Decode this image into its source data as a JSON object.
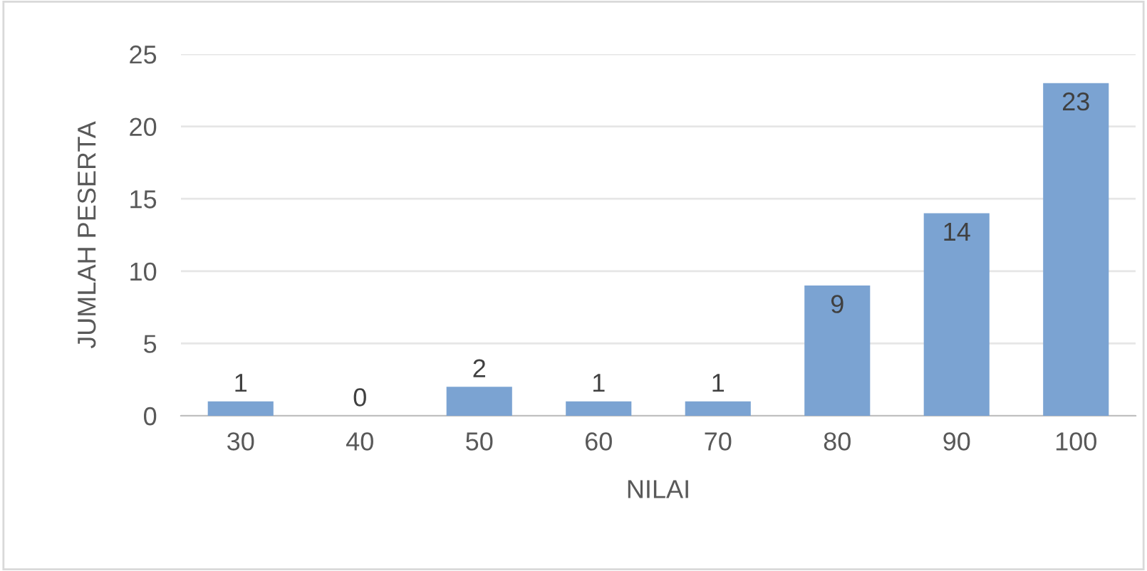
{
  "chart_data": {
    "type": "bar",
    "xlabel": "NILAI",
    "ylabel": "JUMLAH PESERTA",
    "categories": [
      "30",
      "40",
      "50",
      "60",
      "70",
      "80",
      "90",
      "100"
    ],
    "values": [
      1,
      0,
      2,
      1,
      1,
      9,
      14,
      23
    ],
    "color": "#7ba3d2",
    "ylim": [
      0,
      25
    ],
    "yticks": [
      0,
      5,
      10,
      15,
      20,
      25
    ],
    "grid": "y",
    "data_labels": true
  }
}
